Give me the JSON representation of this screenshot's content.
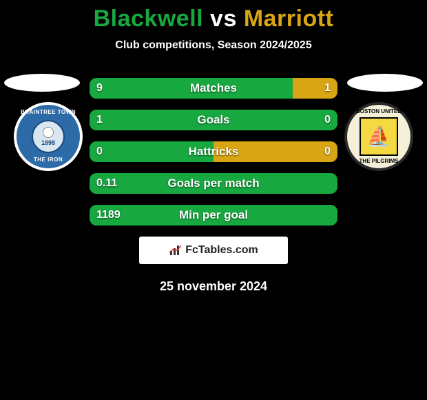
{
  "colors": {
    "player1": "#18a840",
    "player2": "#d8a514",
    "background": "#000000",
    "text_light": "#ffffff"
  },
  "title": {
    "player1": "Blackwell",
    "vs": " vs ",
    "player2": "Marriott"
  },
  "subtitle": "Club competitions, Season 2024/2025",
  "badges": {
    "left": {
      "top_text": "BRAINTREE TOWN",
      "bottom_text": "THE IRON",
      "year": "1898"
    },
    "right": {
      "top_text": "BOSTON UNITED",
      "bottom_text": "THE PILGRIMS"
    }
  },
  "stats": [
    {
      "label": "Matches",
      "left_val": "9",
      "right_val": "1",
      "left_pct": 82,
      "right_pct": 18
    },
    {
      "label": "Goals",
      "left_val": "1",
      "right_val": "0",
      "left_pct": 100,
      "right_pct": 0
    },
    {
      "label": "Hattricks",
      "left_val": "0",
      "right_val": "0",
      "left_pct": 50,
      "right_pct": 50
    },
    {
      "label": "Goals per match",
      "left_val": "0.11",
      "right_val": "",
      "left_pct": 100,
      "right_pct": 0
    },
    {
      "label": "Min per goal",
      "left_val": "1189",
      "right_val": "",
      "left_pct": 100,
      "right_pct": 0
    }
  ],
  "attribution": "FcTables.com",
  "date": "25 november 2024"
}
